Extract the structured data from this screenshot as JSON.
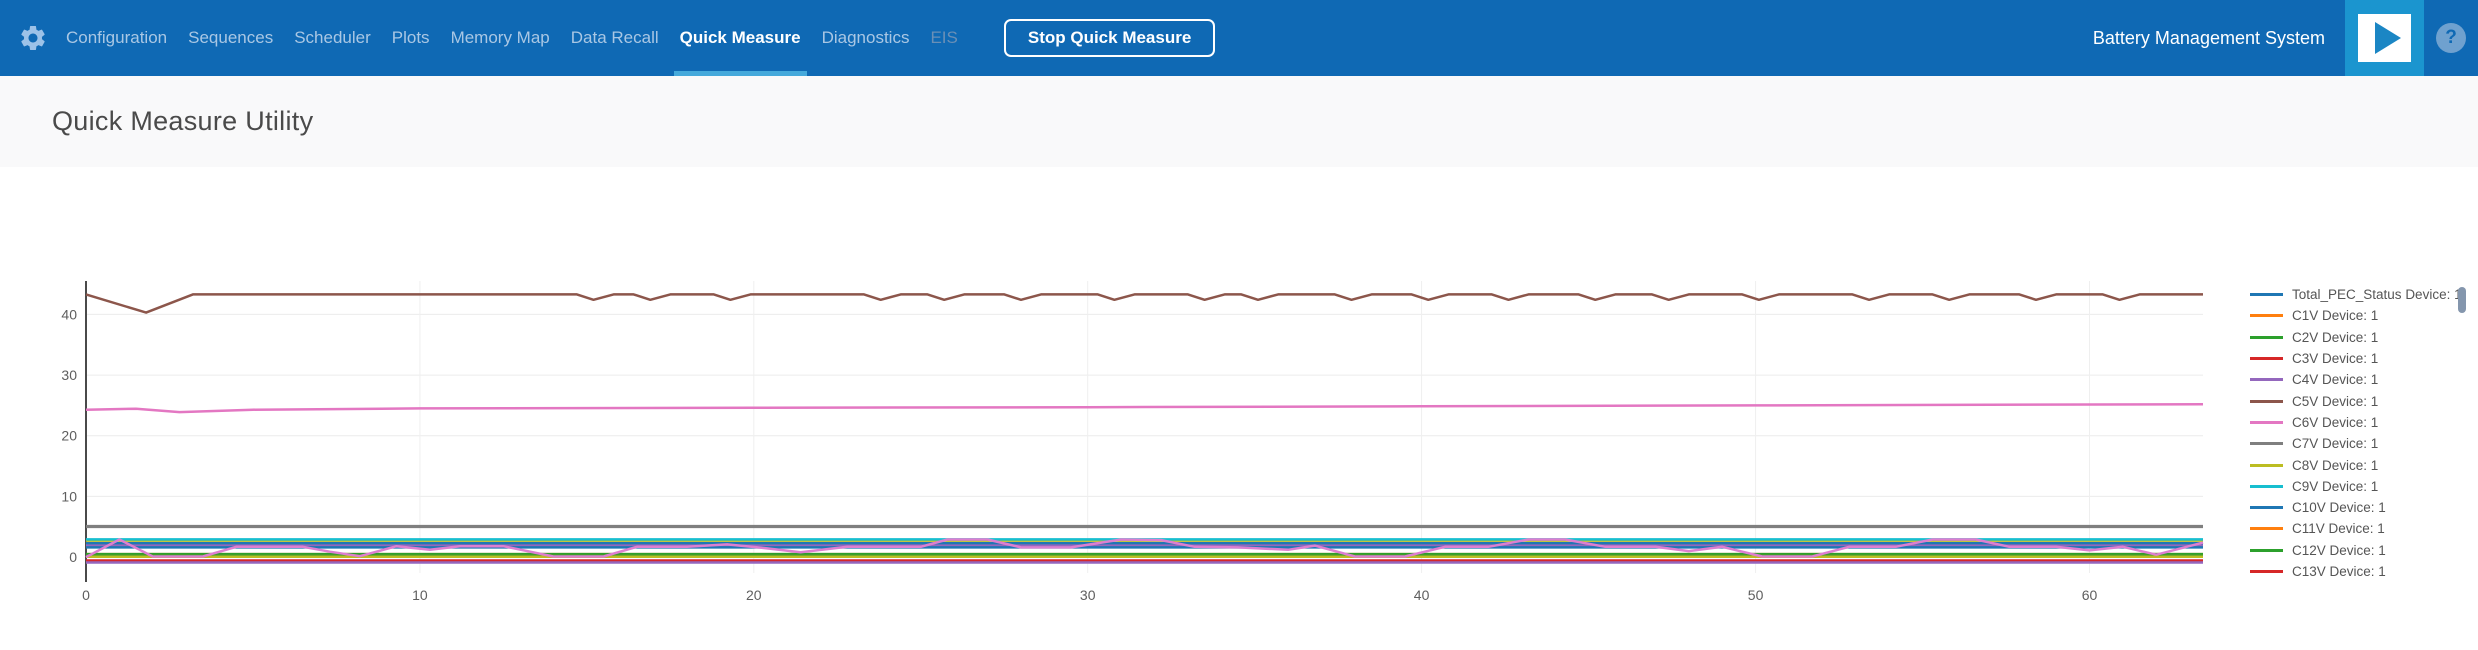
{
  "navbar": {
    "items": [
      {
        "label": "Configuration",
        "state": "normal"
      },
      {
        "label": "Sequences",
        "state": "normal"
      },
      {
        "label": "Scheduler",
        "state": "normal"
      },
      {
        "label": "Plots",
        "state": "normal"
      },
      {
        "label": "Memory Map",
        "state": "normal"
      },
      {
        "label": "Data Recall",
        "state": "normal"
      },
      {
        "label": "Quick Measure",
        "state": "active"
      },
      {
        "label": "Diagnostics",
        "state": "normal"
      },
      {
        "label": "EIS",
        "state": "disabled"
      }
    ],
    "stop_button": "Stop Quick Measure",
    "app_title": "Battery Management System",
    "help_glyph": "?",
    "icons": {
      "gear": "gear-icon",
      "play": "play-icon",
      "help": "help-icon"
    },
    "colors": {
      "background": "#0f69b4",
      "active_underline": "#45a9db",
      "play_tile": "#1b95cf",
      "inactive_text": "#a9c7e4",
      "disabled_text": "#6a8fb6"
    }
  },
  "header": {
    "title": "Quick Measure Utility"
  },
  "chart_data": {
    "type": "line",
    "title": "",
    "xlabel": "",
    "ylabel": "",
    "x_ticks": [
      0,
      10,
      20,
      30,
      40,
      50,
      60
    ],
    "y_ticks": [
      0,
      10,
      20,
      30,
      40
    ],
    "x_range": [
      0,
      63.4
    ],
    "y_range": [
      -4.1,
      45.5
    ],
    "grid": true,
    "legend_position": "right",
    "legend_scrollbar": true,
    "series": [
      {
        "label": "Total_PEC_Status Device: 1",
        "color": "#1f77b4",
        "in_legend": true,
        "x": [
          0,
          63.4
        ],
        "y": [
          2.3,
          2.3
        ]
      },
      {
        "label": "C1V Device: 1",
        "color": "#ff7f0e",
        "in_legend": true,
        "x": [
          0,
          63.4
        ],
        "y": [
          0.5,
          0.5
        ]
      },
      {
        "label": "C2V Device: 1",
        "color": "#2ca02c",
        "in_legend": true,
        "x": [
          0,
          63.4
        ],
        "y": [
          0.5,
          0.5
        ]
      },
      {
        "label": "C3V Device: 1",
        "color": "#d62728",
        "in_legend": true,
        "x": [
          0,
          63.4
        ],
        "y": [
          -0.55,
          -0.55
        ]
      },
      {
        "label": "C4V Device: 1",
        "color": "#9467bd",
        "in_legend": true,
        "x": [
          0,
          63.4
        ],
        "y": [
          1.9,
          1.9
        ]
      },
      {
        "label": "C5V Device: 1",
        "color": "#8c564b",
        "in_legend": true,
        "x": [
          0,
          1.8,
          3.2,
          14.7,
          15.2,
          15.8,
          16.4,
          16.9,
          17.5,
          18.8,
          19.3,
          19.9,
          23.3,
          23.8,
          24.4,
          25.2,
          25.7,
          26.3,
          27.5,
          28.0,
          28.6,
          30.3,
          30.8,
          31.4,
          33.0,
          33.5,
          34.1,
          34.6,
          35.1,
          35.7,
          37.4,
          37.9,
          38.5,
          39.7,
          40.2,
          40.8,
          42.1,
          42.6,
          43.2,
          44.7,
          45.2,
          45.8,
          46.9,
          47.4,
          48.0,
          49.6,
          50.1,
          50.7,
          52.9,
          53.4,
          54.0,
          55.3,
          55.8,
          56.4,
          57.9,
          58.4,
          59.0,
          60.4,
          60.9,
          61.5,
          63.4
        ],
        "y": [
          43.3,
          40.3,
          43.3,
          43.3,
          42.4,
          43.3,
          43.3,
          42.4,
          43.3,
          43.3,
          42.4,
          43.3,
          43.3,
          42.4,
          43.3,
          43.3,
          42.4,
          43.3,
          43.3,
          42.4,
          43.3,
          43.3,
          42.4,
          43.3,
          43.3,
          42.4,
          43.3,
          43.3,
          42.4,
          43.3,
          43.3,
          42.4,
          43.3,
          43.3,
          42.4,
          43.3,
          43.3,
          42.4,
          43.3,
          43.3,
          42.4,
          43.3,
          43.3,
          42.4,
          43.3,
          43.3,
          42.4,
          43.3,
          43.3,
          42.4,
          43.3,
          43.3,
          42.4,
          43.3,
          43.3,
          42.4,
          43.3,
          43.3,
          42.4,
          43.3,
          43.3
        ]
      },
      {
        "label": "C6V Device: 1",
        "color": "#e377c2",
        "in_legend": true,
        "x": [
          0,
          1.5,
          2.8,
          5,
          10,
          20,
          30,
          40,
          50,
          57,
          63.4
        ],
        "y": [
          24.3,
          24.45,
          23.9,
          24.3,
          24.5,
          24.6,
          24.7,
          24.85,
          25.0,
          25.1,
          25.2
        ]
      },
      {
        "label": "C7V Device: 1",
        "color": "#7f7f7f",
        "in_legend": true,
        "width": 3.2,
        "x": [
          0,
          63.4
        ],
        "y": [
          5.05,
          5.05
        ]
      },
      {
        "label": "C8V Device: 1",
        "color": "#bcbd22",
        "in_legend": true,
        "x": [
          0,
          63.4
        ],
        "y": [
          2.72,
          2.72
        ]
      },
      {
        "label": "C9V Device: 1",
        "color": "#17becf",
        "in_legend": true,
        "x": [
          0,
          63.4
        ],
        "y": [
          2.92,
          2.92
        ]
      },
      {
        "label": "C10V Device: 1",
        "color": "#1f77b4",
        "in_legend": true,
        "x": [
          0,
          63.4
        ],
        "y": [
          1.6,
          1.6
        ]
      },
      {
        "label": "C11V Device: 1",
        "color": "#ff7f0e",
        "in_legend": true,
        "x": [
          0,
          63.4
        ],
        "y": [
          0.28,
          0.28
        ]
      },
      {
        "label": "C12V Device: 1",
        "color": "#2ca02c",
        "in_legend": true,
        "x": [
          0,
          63.4
        ],
        "y": [
          0.28,
          0.28
        ]
      },
      {
        "label": "C13V Device: 1",
        "color": "#d62728",
        "in_legend": true,
        "x": [
          0,
          63.4
        ],
        "y": [
          -0.6,
          -0.6
        ]
      },
      {
        "label": "",
        "color": "#bcbd22",
        "in_legend": false,
        "x": [
          0,
          63.4
        ],
        "y": [
          0.06,
          0.06
        ]
      },
      {
        "label": "",
        "color": "#9467bd",
        "in_legend": false,
        "x": [
          0,
          63.4
        ],
        "y": [
          -0.88,
          -0.88
        ]
      },
      {
        "label": "",
        "color": "#dd7fd0",
        "in_legend": false,
        "x": [
          0,
          1,
          2,
          3.5,
          4.5,
          6.5,
          7.3,
          8.2,
          9.3,
          10.3,
          11.2,
          12.5,
          14,
          15.5,
          16.5,
          18,
          19.2,
          20.3,
          21.4,
          22.8,
          25,
          25.8,
          27,
          28,
          29.5,
          31,
          32.2,
          33.2,
          34.5,
          36,
          36.8,
          38,
          39.5,
          40.7,
          42,
          43.2,
          44.3,
          45.5,
          47,
          48,
          49,
          50.2,
          51.7,
          52.8,
          54.2,
          55.3,
          56.6,
          57.6,
          59,
          60,
          61,
          62,
          63.4
        ],
        "y": [
          0,
          2.9,
          0.1,
          0.1,
          1.7,
          1.7,
          0.9,
          0.15,
          1.8,
          1.2,
          1.8,
          1.8,
          0.1,
          0.1,
          1.7,
          1.7,
          2.1,
          1.5,
          0.8,
          1.7,
          1.7,
          2.9,
          2.9,
          1.6,
          1.6,
          2.9,
          2.8,
          1.7,
          1.6,
          1.2,
          1.9,
          0.1,
          0.1,
          1.7,
          1.7,
          2.9,
          2.9,
          1.7,
          1.7,
          1.0,
          1.7,
          0.1,
          0.1,
          1.7,
          1.7,
          2.9,
          2.9,
          1.7,
          1.7,
          1.1,
          1.7,
          0.4,
          2.4
        ]
      }
    ]
  }
}
